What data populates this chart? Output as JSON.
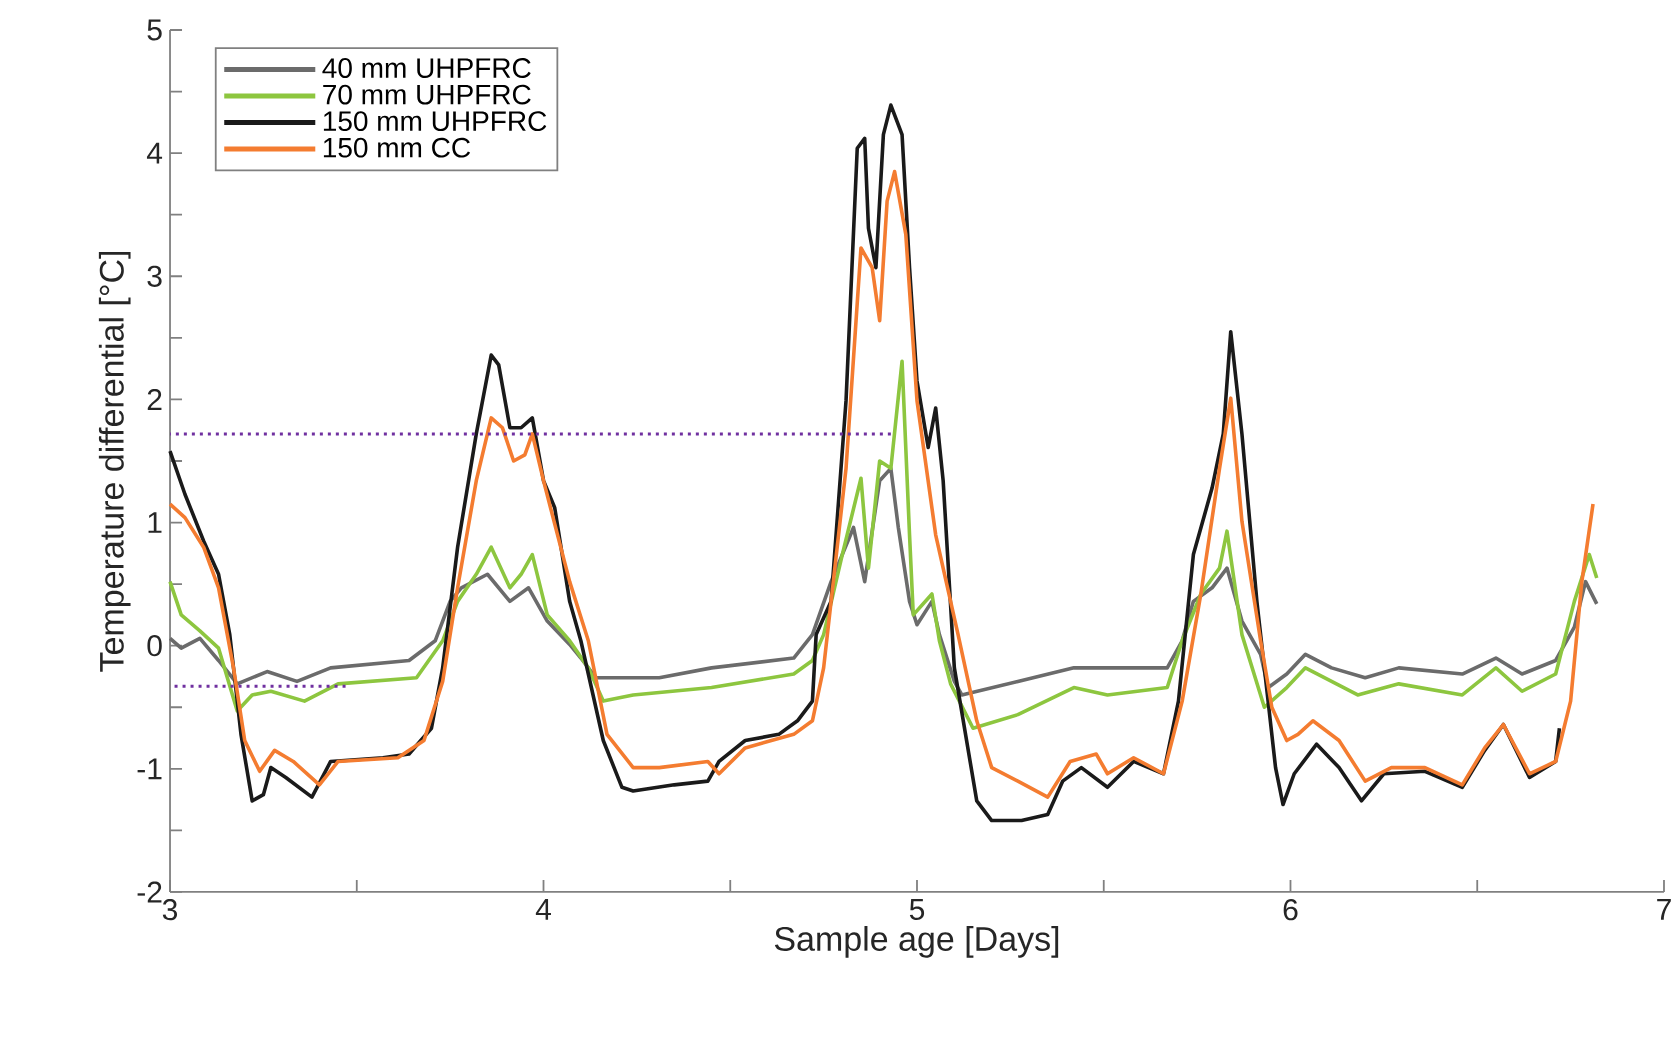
{
  "chart_data": {
    "type": "line",
    "xlabel": "Sample age [Days]",
    "ylabel": "Temperature differential [°C]",
    "xlim": [
      3,
      7
    ],
    "ylim": [
      -2,
      5
    ],
    "xticks": [
      3,
      4,
      5,
      6,
      7
    ],
    "yticks": [
      -2,
      -1,
      0,
      1,
      2,
      3,
      4,
      5
    ],
    "legend": "top left",
    "grid": false,
    "line_style": "solid",
    "series": [
      {
        "name": "40 mm UHPFRC",
        "color": "#6b6b6b",
        "x": [
          3.0,
          3.03,
          3.08,
          3.13,
          3.18,
          3.26,
          3.34,
          3.43,
          3.64,
          3.71,
          3.75,
          3.78,
          3.85,
          3.91,
          3.96,
          4.01,
          4.07,
          4.1,
          4.14,
          4.24,
          4.31,
          4.45,
          4.67,
          4.72,
          4.77,
          4.83,
          4.86,
          4.9,
          4.93,
          4.95,
          4.98,
          5.0,
          5.04,
          5.06,
          5.1,
          5.12,
          5.27,
          5.42,
          5.51,
          5.67,
          5.71,
          5.74,
          5.79,
          5.83,
          5.87,
          5.92,
          5.94,
          5.99,
          6.04,
          6.11,
          6.2,
          6.29,
          6.46,
          6.55,
          6.62,
          6.71,
          6.76,
          6.79,
          6.82
        ],
        "values": [
          0.06,
          -0.02,
          0.06,
          -0.12,
          -0.31,
          -0.21,
          -0.29,
          -0.18,
          -0.12,
          0.04,
          0.36,
          0.47,
          0.58,
          0.36,
          0.47,
          0.2,
          0.01,
          -0.1,
          -0.26,
          -0.26,
          -0.26,
          -0.18,
          -0.1,
          0.09,
          0.52,
          0.96,
          0.52,
          1.34,
          1.44,
          0.96,
          0.36,
          0.17,
          0.36,
          0.09,
          -0.29,
          -0.4,
          -0.29,
          -0.18,
          -0.18,
          -0.18,
          0.04,
          0.36,
          0.47,
          0.63,
          0.2,
          -0.07,
          -0.34,
          -0.23,
          -0.07,
          -0.18,
          -0.26,
          -0.18,
          -0.23,
          -0.1,
          -0.23,
          -0.12,
          0.15,
          0.52,
          0.34
        ]
      },
      {
        "name": "70 mm UHPFRC",
        "color": "#8dc63f",
        "x": [
          3.0,
          3.03,
          3.08,
          3.13,
          3.18,
          3.22,
          3.27,
          3.36,
          3.45,
          3.66,
          3.73,
          3.77,
          3.82,
          3.86,
          3.91,
          3.94,
          3.97,
          4.01,
          4.07,
          4.12,
          4.16,
          4.24,
          4.45,
          4.67,
          4.72,
          4.75,
          4.8,
          4.85,
          4.87,
          4.9,
          4.93,
          4.96,
          4.98,
          4.99,
          5.04,
          5.06,
          5.09,
          5.15,
          5.27,
          5.42,
          5.51,
          5.67,
          5.71,
          5.76,
          5.81,
          5.83,
          5.87,
          5.93,
          5.99,
          6.04,
          6.18,
          6.29,
          6.46,
          6.55,
          6.62,
          6.71,
          6.76,
          6.8,
          6.82
        ],
        "values": [
          0.52,
          0.25,
          0.12,
          -0.02,
          -0.53,
          -0.4,
          -0.37,
          -0.45,
          -0.31,
          -0.26,
          0.04,
          0.36,
          0.58,
          0.8,
          0.47,
          0.58,
          0.74,
          0.25,
          0.04,
          -0.18,
          -0.45,
          -0.4,
          -0.34,
          -0.23,
          -0.12,
          0.09,
          0.74,
          1.36,
          0.63,
          1.5,
          1.44,
          2.31,
          0.9,
          0.25,
          0.42,
          0.04,
          -0.31,
          -0.67,
          -0.56,
          -0.34,
          -0.4,
          -0.34,
          0.04,
          0.42,
          0.63,
          0.93,
          0.09,
          -0.5,
          -0.34,
          -0.18,
          -0.4,
          -0.31,
          -0.4,
          -0.18,
          -0.37,
          -0.23,
          0.36,
          0.74,
          0.55
        ]
      },
      {
        "name": "150 mm UHPFRC",
        "color": "#1a1a1a",
        "x": [
          3.0,
          3.04,
          3.09,
          3.13,
          3.16,
          3.19,
          3.22,
          3.25,
          3.27,
          3.31,
          3.38,
          3.43,
          3.57,
          3.64,
          3.7,
          3.73,
          3.77,
          3.82,
          3.86,
          3.88,
          3.91,
          3.94,
          3.97,
          4.0,
          4.03,
          4.07,
          4.1,
          4.16,
          4.21,
          4.24,
          4.35,
          4.44,
          4.47,
          4.54,
          4.63,
          4.68,
          4.72,
          4.73,
          4.77,
          4.81,
          4.84,
          4.86,
          4.87,
          4.89,
          4.91,
          4.93,
          4.96,
          4.98,
          5.0,
          5.03,
          5.05,
          5.07,
          5.1,
          5.16,
          5.2,
          5.28,
          5.35,
          5.39,
          5.44,
          5.51,
          5.58,
          5.66,
          5.7,
          5.74,
          5.79,
          5.82,
          5.84,
          5.87,
          5.91,
          5.94,
          5.96,
          5.98,
          6.01,
          6.07,
          6.13,
          6.19,
          6.25,
          6.36,
          6.46,
          6.52,
          6.57,
          6.64,
          6.71,
          6.72
        ],
        "values": [
          1.58,
          1.23,
          0.85,
          0.58,
          0.09,
          -0.72,
          -1.26,
          -1.21,
          -0.99,
          -1.07,
          -1.23,
          -0.94,
          -0.91,
          -0.88,
          -0.67,
          -0.18,
          0.8,
          1.72,
          2.36,
          2.28,
          1.77,
          1.77,
          1.85,
          1.34,
          1.12,
          0.36,
          0.04,
          -0.77,
          -1.15,
          -1.18,
          -1.13,
          -1.1,
          -0.94,
          -0.77,
          -0.72,
          -0.61,
          -0.45,
          0.09,
          0.36,
          1.99,
          4.04,
          4.12,
          3.39,
          3.07,
          4.15,
          4.39,
          4.15,
          3.07,
          2.15,
          1.61,
          1.93,
          1.34,
          -0.18,
          -1.26,
          -1.42,
          -1.42,
          -1.37,
          -1.1,
          -0.99,
          -1.15,
          -0.94,
          -1.04,
          -0.45,
          0.74,
          1.28,
          1.72,
          2.55,
          1.72,
          0.36,
          -0.45,
          -0.99,
          -1.29,
          -1.04,
          -0.8,
          -0.99,
          -1.26,
          -1.04,
          -1.02,
          -1.15,
          -0.85,
          -0.64,
          -1.07,
          -0.94,
          -0.67
        ]
      },
      {
        "name": "150 mm CC",
        "color": "#f47c30",
        "x": [
          3.0,
          3.04,
          3.09,
          3.13,
          3.17,
          3.2,
          3.24,
          3.28,
          3.33,
          3.4,
          3.45,
          3.61,
          3.68,
          3.73,
          3.77,
          3.82,
          3.86,
          3.89,
          3.92,
          3.95,
          3.97,
          4.0,
          4.07,
          4.12,
          4.17,
          4.24,
          4.31,
          4.44,
          4.47,
          4.54,
          4.67,
          4.72,
          4.75,
          4.81,
          4.85,
          4.88,
          4.9,
          4.92,
          4.94,
          4.97,
          5.0,
          5.05,
          5.11,
          5.16,
          5.2,
          5.27,
          5.35,
          5.41,
          5.48,
          5.51,
          5.58,
          5.66,
          5.71,
          5.76,
          5.81,
          5.84,
          5.87,
          5.92,
          5.95,
          5.99,
          6.02,
          6.06,
          6.13,
          6.2,
          6.27,
          6.36,
          6.46,
          6.52,
          6.57,
          6.64,
          6.71,
          6.75,
          6.78,
          6.81
        ],
        "values": [
          1.15,
          1.04,
          0.8,
          0.47,
          -0.18,
          -0.77,
          -1.02,
          -0.85,
          -0.94,
          -1.13,
          -0.94,
          -0.91,
          -0.77,
          -0.29,
          0.47,
          1.34,
          1.85,
          1.77,
          1.5,
          1.55,
          1.72,
          1.34,
          0.52,
          0.04,
          -0.72,
          -0.99,
          -0.99,
          -0.94,
          -1.04,
          -0.83,
          -0.72,
          -0.61,
          -0.18,
          1.44,
          3.23,
          3.07,
          2.64,
          3.61,
          3.85,
          3.34,
          1.99,
          0.9,
          0.09,
          -0.61,
          -0.99,
          -1.1,
          -1.23,
          -0.94,
          -0.88,
          -1.04,
          -0.91,
          -1.04,
          -0.45,
          0.42,
          1.44,
          2.01,
          1.01,
          0.04,
          -0.5,
          -0.77,
          -0.72,
          -0.61,
          -0.77,
          -1.1,
          -0.99,
          -0.99,
          -1.13,
          -0.83,
          -0.64,
          -1.04,
          -0.94,
          -0.45,
          0.52,
          1.15
        ]
      },
      {
        "color": "#7030a0",
        "line_style": "dotted",
        "x": [
          4.93,
          3.0
        ],
        "values": [
          1.72,
          1.72
        ]
      },
      {
        "color": "#7030a0",
        "line_style": "dotted",
        "x": [
          3.47,
          3.0
        ],
        "values": [
          -0.33,
          -0.33
        ]
      }
    ]
  }
}
